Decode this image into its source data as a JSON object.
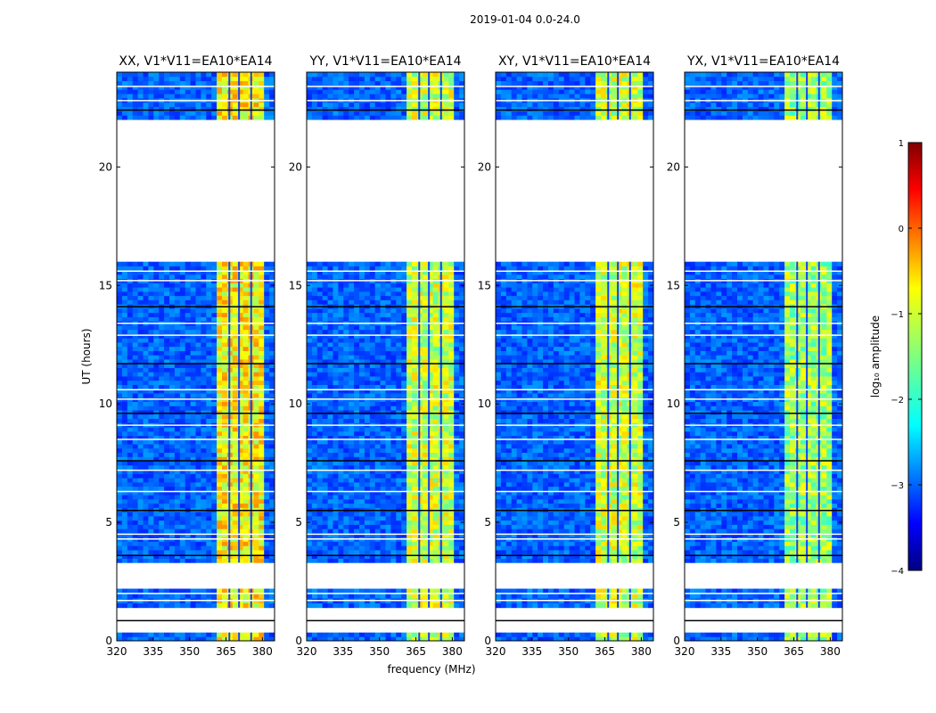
{
  "figure": {
    "suptitle": "2019-01-04 0.0-24.0",
    "xlabel": "frequency (MHz)",
    "ylabel": "UT (hours)"
  },
  "chart_data": {
    "type": "heatmap",
    "xlim": [
      320,
      385
    ],
    "ylim": [
      0,
      24
    ],
    "xticks": [
      320,
      335,
      350,
      365,
      380
    ],
    "yticks": [
      0,
      5,
      10,
      15,
      20
    ],
    "panels": [
      {
        "title": "XX, V1*V11=EA10*EA14",
        "level": "strong"
      },
      {
        "title": "YY, V1*V11=EA10*EA14",
        "level": "medium"
      },
      {
        "title": "XY, V1*V11=EA10*EA14",
        "level": "medium"
      },
      {
        "title": "YX, V1*V11=EA10*EA14",
        "level": "weak"
      }
    ],
    "data_blocks_ut": [
      [
        0.0,
        0.35
      ],
      [
        1.4,
        2.2
      ],
      [
        3.3,
        16.0
      ],
      [
        22.0,
        24.0
      ]
    ],
    "gap_lines_ut": [
      0.85,
      1.7,
      2.0,
      3.6,
      4.3,
      4.5,
      5.5,
      6.3,
      7.2,
      7.6,
      8.5,
      9.1,
      9.6,
      10.2,
      10.6,
      11.7,
      12.9,
      13.4,
      14.1,
      15.2,
      15.6,
      22.4,
      22.8,
      23.4
    ],
    "rfi_band_mhz": [
      361,
      380
    ],
    "rfi_channel_dividers_mhz": [
      366,
      370,
      375
    ],
    "colorbar": {
      "label": "log₁₀ amplitude",
      "range": [
        -4,
        1
      ],
      "ticks": [
        "1",
        "0",
        "−1",
        "−2",
        "−3",
        "−4"
      ],
      "colormap": "jet"
    }
  }
}
